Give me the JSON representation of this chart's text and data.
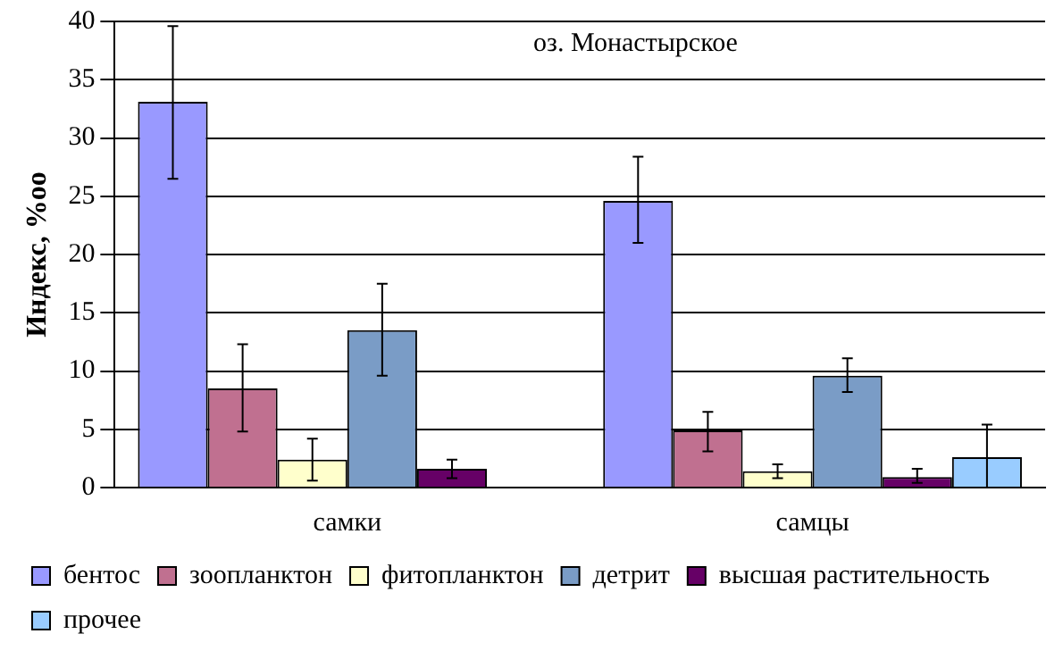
{
  "chart_data": {
    "type": "bar",
    "ylabel": "Индекс, %oo",
    "annotations": [
      "оз. Монастырское"
    ],
    "categories": [
      "самки",
      "самцы"
    ],
    "ylim": [
      0,
      40
    ],
    "yticks": [
      0,
      5,
      10,
      15,
      20,
      25,
      30,
      35,
      40
    ],
    "grid": "y",
    "legend": "bottom",
    "series": [
      {
        "name": "бентос",
        "color": "#9999ff",
        "values": [
          33.1,
          24.6
        ],
        "errors": [
          [
            26.5,
            39.6
          ],
          [
            21.0,
            28.4
          ]
        ]
      },
      {
        "name": "зоопланктон",
        "color": "#c07090",
        "values": [
          8.5,
          4.9
        ],
        "errors": [
          [
            4.8,
            12.3
          ],
          [
            3.1,
            6.5
          ]
        ]
      },
      {
        "name": "фитопланктон",
        "color": "#ffffcc",
        "values": [
          2.4,
          1.4
        ],
        "errors": [
          [
            0.6,
            4.2
          ],
          [
            0.8,
            2.0
          ]
        ]
      },
      {
        "name": "детрит",
        "color": "#7a9cc6",
        "values": [
          13.5,
          9.6
        ],
        "errors": [
          [
            9.6,
            17.5
          ],
          [
            8.2,
            11.1
          ]
        ]
      },
      {
        "name": "высшая растительность",
        "color": "#660066",
        "values": [
          1.6,
          0.9
        ],
        "errors": [
          [
            0.8,
            2.4
          ],
          [
            0.4,
            1.6
          ]
        ]
      },
      {
        "name": "прочее",
        "color": "#99ccff",
        "values": [
          null,
          2.6
        ],
        "errors": [
          null,
          [
            0,
            5.4
          ]
        ]
      }
    ]
  }
}
